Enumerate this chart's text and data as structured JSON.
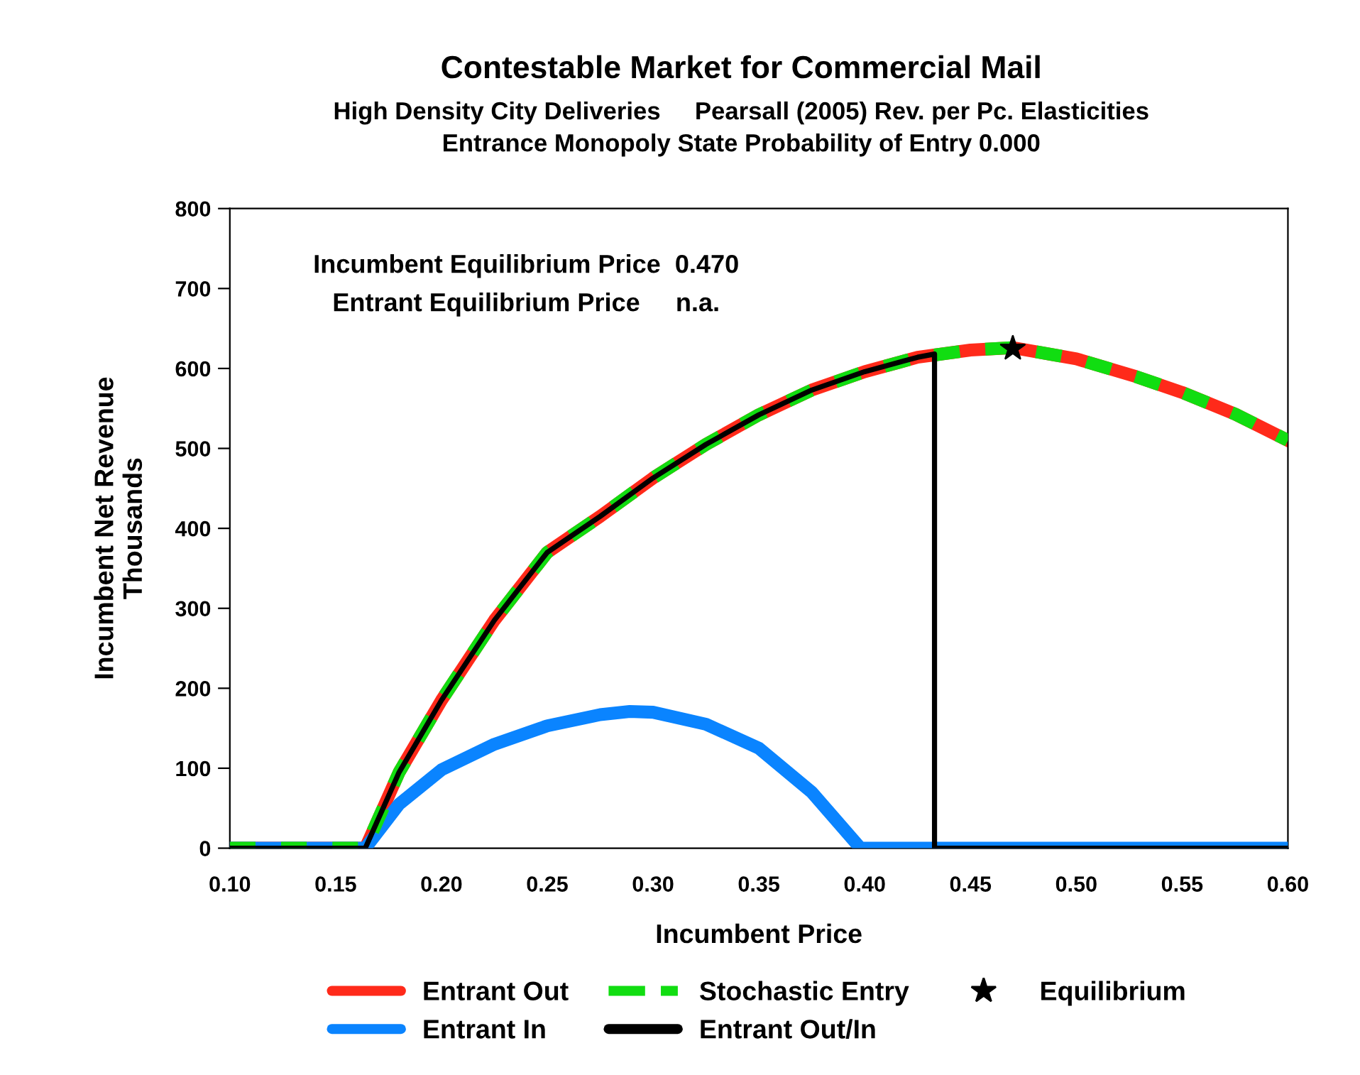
{
  "chart_data": {
    "type": "line",
    "title": "Contestable Market for Commercial Mail",
    "subtitle": "High Density City Deliveries     Pearsall (2005) Rev. per Pc. Elasticities\nEntrance Monopoly State Probability of Entry 0.000",
    "xlabel": "Incumbent Price",
    "ylabel": "Incumbent Net Revenue\nThousands",
    "annotations": [
      "Incumbent Equilibrium Price  0.470",
      "Entrant Equilibrium Price     n.a."
    ],
    "series": [
      {
        "name": "Entrant Out",
        "color": "#ff2a1a",
        "line_style": "solid",
        "x": [
          0.1,
          0.164,
          0.18,
          0.2,
          0.225,
          0.25,
          0.275,
          0.3,
          0.325,
          0.35,
          0.375,
          0.4,
          0.425,
          0.45,
          0.47,
          0.5,
          0.528,
          0.55,
          0.575,
          0.6
        ],
        "values": [
          0,
          0,
          95,
          185,
          285,
          370,
          415,
          463,
          505,
          542,
          573,
          596,
          614,
          623,
          626,
          612,
          590,
          570,
          543,
          510
        ]
      },
      {
        "name": "Entrant In",
        "color": "#0a84ff",
        "line_style": "solid",
        "x": [
          0.1,
          0.164,
          0.18,
          0.2,
          0.225,
          0.25,
          0.275,
          0.289,
          0.3,
          0.325,
          0.35,
          0.375,
          0.398,
          0.6
        ],
        "values": [
          0,
          0,
          55,
          98,
          130,
          153,
          167,
          171,
          170,
          155,
          125,
          70,
          0,
          0
        ]
      },
      {
        "name": "Stochastic Entry",
        "color": "#11dd11",
        "line_style": "dashed",
        "x": [
          0.1,
          0.164,
          0.18,
          0.2,
          0.225,
          0.25,
          0.275,
          0.3,
          0.325,
          0.35,
          0.375,
          0.4,
          0.425,
          0.45,
          0.47,
          0.5,
          0.528,
          0.55,
          0.575,
          0.6
        ],
        "values": [
          0,
          0,
          95,
          185,
          285,
          370,
          415,
          463,
          505,
          542,
          573,
          596,
          614,
          623,
          626,
          612,
          590,
          570,
          543,
          510
        ]
      },
      {
        "name": "Entrant Out/In",
        "color": "#000000",
        "line_style": "solid",
        "x": [
          0.1,
          0.164,
          0.18,
          0.2,
          0.225,
          0.25,
          0.275,
          0.3,
          0.325,
          0.35,
          0.375,
          0.4,
          0.425,
          0.433,
          0.433,
          0.6
        ],
        "values": [
          0,
          0,
          95,
          185,
          285,
          370,
          415,
          463,
          505,
          542,
          573,
          596,
          614,
          618,
          0,
          0
        ]
      },
      {
        "name": "Equilibrium",
        "type": "scatter",
        "marker": "star",
        "color": "#000000",
        "x": [
          0.47
        ],
        "values": [
          625
        ]
      }
    ],
    "xlim": [
      0.1,
      0.6
    ],
    "xticks": [
      {
        "value": 0.1,
        "label": "0.10"
      },
      {
        "value": 0.15,
        "label": "0.15"
      },
      {
        "value": 0.2,
        "label": "0.20"
      },
      {
        "value": 0.25,
        "label": "0.25"
      },
      {
        "value": 0.3,
        "label": "0.30"
      },
      {
        "value": 0.35,
        "label": "0.35"
      },
      {
        "value": 0.4,
        "label": "0.40"
      },
      {
        "value": 0.45,
        "label": "0.45"
      },
      {
        "value": 0.5,
        "label": "0.50"
      },
      {
        "value": 0.55,
        "label": "0.55"
      },
      {
        "value": 0.6,
        "label": "0.60"
      }
    ],
    "ylim": [
      0,
      800
    ],
    "yticks": [
      0,
      100,
      200,
      300,
      400,
      500,
      600,
      700,
      800
    ],
    "grid": false,
    "legend": "bottom"
  }
}
